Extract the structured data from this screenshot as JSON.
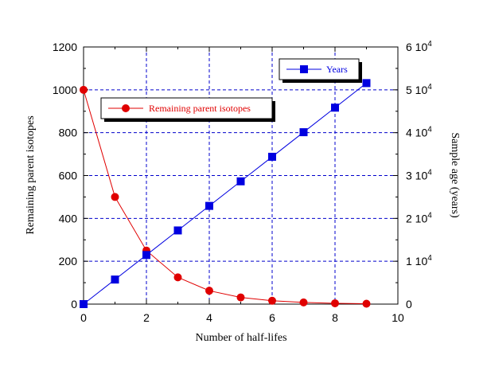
{
  "chart_data": {
    "type": "line",
    "title": "",
    "xlabel": "Number of half-lifes",
    "ylabel_left": "Remaining parent isotopes",
    "ylabel_right": "Sample age (years)",
    "xlim": [
      0,
      10
    ],
    "ylim_left": [
      0,
      1200
    ],
    "ylim_right": [
      0,
      60000
    ],
    "x_ticks": [
      0,
      2,
      4,
      6,
      8,
      10
    ],
    "y_left_ticks": [
      0,
      200,
      400,
      600,
      800,
      1000,
      1200
    ],
    "y_right_ticks": [
      {
        "value": 0,
        "mantissa": "0",
        "exp": ""
      },
      {
        "value": 10000,
        "mantissa": "1 10",
        "exp": "4"
      },
      {
        "value": 20000,
        "mantissa": "2 10",
        "exp": "4"
      },
      {
        "value": 30000,
        "mantissa": "3 10",
        "exp": "4"
      },
      {
        "value": 40000,
        "mantissa": "4 10",
        "exp": "4"
      },
      {
        "value": 50000,
        "mantissa": "5 10",
        "exp": "4"
      },
      {
        "value": 60000,
        "mantissa": "6 10",
        "exp": "4"
      }
    ],
    "grid": true,
    "series": [
      {
        "name": "Remaining parent isotopes",
        "axis": "left",
        "color": "#e00000",
        "marker": "circle",
        "x": [
          0,
          1,
          2,
          3,
          4,
          5,
          6,
          7,
          8,
          9
        ],
        "values": [
          1000,
          500,
          250,
          125,
          62.5,
          31.25,
          15.6,
          7.8,
          3.9,
          1.95
        ]
      },
      {
        "name": "Years",
        "axis": "right",
        "color": "#0000e0",
        "marker": "square",
        "x": [
          0,
          1,
          2,
          3,
          4,
          5,
          6,
          7,
          8,
          9
        ],
        "values": [
          0,
          5730,
          11460,
          17190,
          22920,
          28650,
          34380,
          40110,
          45840,
          51570
        ]
      }
    ]
  }
}
